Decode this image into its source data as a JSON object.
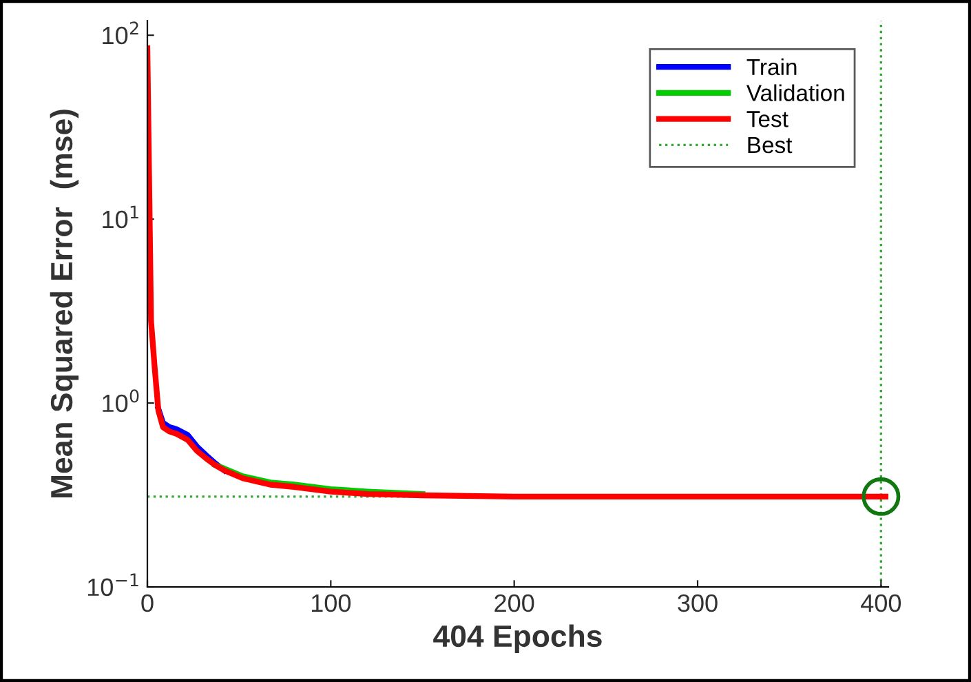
{
  "chart_data": {
    "type": "line",
    "xlabel": "404 Epochs",
    "ylabel": "Mean Squared Error  (mse)",
    "x": [
      0,
      2,
      4,
      6,
      8.5,
      12,
      16,
      22,
      27,
      32,
      37,
      42,
      52,
      67,
      80,
      100,
      120,
      150,
      200,
      250,
      300,
      350,
      404
    ],
    "series": [
      {
        "name": "Train",
        "color": "#0000ff",
        "values": [
          null,
          null,
          null,
          0.93,
          0.78,
          0.74,
          0.72,
          0.67,
          0.58,
          0.52,
          0.47,
          0.43,
          null,
          null,
          null,
          null,
          null,
          null,
          null,
          null,
          null,
          null,
          null
        ]
      },
      {
        "name": "Validation",
        "color": "#00cc00",
        "values": [
          null,
          null,
          null,
          null,
          null,
          null,
          null,
          null,
          null,
          null,
          0.46,
          0.44,
          0.4,
          0.37,
          0.36,
          0.34,
          0.33,
          0.32,
          null,
          null,
          null,
          null,
          null
        ]
      },
      {
        "name": "Test",
        "color": "#ff0000",
        "values": [
          85,
          2.8,
          1.55,
          0.91,
          0.74,
          0.7,
          0.68,
          0.63,
          0.55,
          0.5,
          0.46,
          0.43,
          0.39,
          0.36,
          0.35,
          0.33,
          0.32,
          0.315,
          0.31,
          0.31,
          0.31,
          0.31,
          0.31
        ]
      },
      {
        "type": "scatter",
        "marker": "circle",
        "color": "#117711",
        "x": [
          400
        ],
        "values": [
          0.31
        ]
      }
    ],
    "ref_lines": [
      {
        "axis": "y",
        "value": 0.31,
        "label": "Best",
        "color": "#33aa33",
        "line_style": "dotted"
      },
      {
        "axis": "x",
        "value": 400,
        "color": "#33aa33",
        "line_style": "dotted"
      }
    ],
    "log": "y",
    "xlim": [
      0,
      404
    ],
    "ylim": [
      0.1,
      120
    ],
    "xticks": [
      0,
      100,
      200,
      300,
      400
    ],
    "yticks": [
      {
        "value": 0.1,
        "label": "10$^{−1}$"
      },
      {
        "value": 1,
        "label": "10$^{0}$"
      },
      {
        "value": 10,
        "label": "10$^{1}$"
      },
      {
        "value": 100,
        "label": "10$^{2}$"
      }
    ],
    "legend": "top right",
    "grid": false
  }
}
